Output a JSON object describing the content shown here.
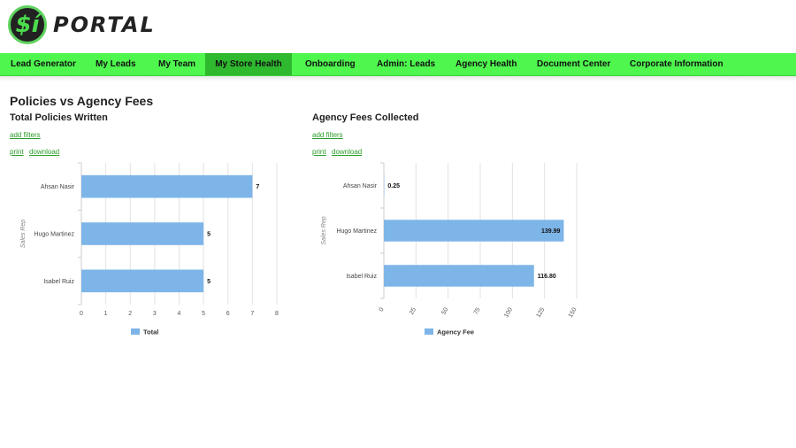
{
  "header": {
    "logo_glyph": "$í",
    "logo_text": "PORTAL"
  },
  "nav": [
    {
      "label": "Lead Generator",
      "active": false
    },
    {
      "label": "My Leads",
      "active": false
    },
    {
      "label": "My Team",
      "active": false
    },
    {
      "label": "My Store Health",
      "active": true
    },
    {
      "label": "Onboarding",
      "active": false
    },
    {
      "label": "Admin: Leads",
      "active": false
    },
    {
      "label": "Agency Health",
      "active": false
    },
    {
      "label": "Document Center",
      "active": false
    },
    {
      "label": "Corporate Information",
      "active": false
    }
  ],
  "page": {
    "title": "Policies vs Agency Fees"
  },
  "links": {
    "add_filters": "add filters",
    "print": "print",
    "download": "download"
  },
  "colors": {
    "bar": "#7eb5e8",
    "nav": "#4ef64e",
    "nav_active": "#2fb92f",
    "link": "#2a9d2a"
  },
  "chart_data": [
    {
      "type": "bar",
      "orientation": "horizontal",
      "title": "Total Policies Written",
      "categories": [
        "Ahsan Nasir",
        "Hugo Martinez",
        "Isabel Ruiz"
      ],
      "series": [
        {
          "name": "Total",
          "values": [
            7,
            5,
            5
          ]
        }
      ],
      "data_labels": [
        "7",
        "5",
        "5"
      ],
      "xlim": [
        0,
        8
      ],
      "xticks": [
        "0",
        "1",
        "2",
        "3",
        "4",
        "5",
        "6",
        "7",
        "8"
      ],
      "ylabel": "Sales Rep",
      "grid": true,
      "legend": "bottom"
    },
    {
      "type": "bar",
      "orientation": "horizontal",
      "title": "Agency Fees Collected",
      "categories": [
        "Ahsan Nasir",
        "Hugo Martinez",
        "Isabel Ruiz"
      ],
      "series": [
        {
          "name": "Agency Fee",
          "values": [
            0.25,
            139.99,
            116.8
          ]
        }
      ],
      "data_labels": [
        "0.25",
        "139.99",
        "116.80"
      ],
      "xlim": [
        0,
        150
      ],
      "xticks": [
        "0",
        "25",
        "50",
        "75",
        "100",
        "125",
        "150"
      ],
      "ylabel": "Sales Rep",
      "grid": true,
      "legend": "bottom"
    }
  ]
}
